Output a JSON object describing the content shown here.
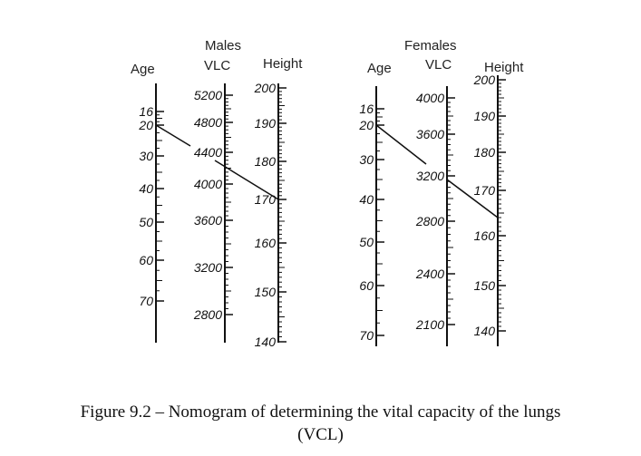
{
  "figure": {
    "caption_line1": "Figure 9.2 –  Nomogram of determining the vital capacity of the lungs",
    "caption_line2": "(VCL)"
  },
  "males": {
    "title": "Males",
    "age_label": "Age",
    "vlc_label": "VLC",
    "height_label": "Height",
    "age_ticks": [
      "16",
      "20",
      "30",
      "40",
      "50",
      "60",
      "70"
    ],
    "vlc_ticks": [
      "5200",
      "4800",
      "4400",
      "4000",
      "3600",
      "3200",
      "2800"
    ],
    "height_ticks": [
      "200",
      "190",
      "180",
      "170",
      "160",
      "150",
      "140"
    ],
    "example": {
      "age": 20,
      "height": 170,
      "vlc": 4250
    }
  },
  "females": {
    "title": "Females",
    "age_label": "Age",
    "vlc_label": "VLC",
    "height_label": "Height",
    "age_ticks": [
      "16",
      "20",
      "30",
      "40",
      "50",
      "60",
      "70"
    ],
    "vlc_ticks": [
      "4000",
      "3600",
      "3200",
      "2800",
      "2400",
      "2100"
    ],
    "height_ticks": [
      "200",
      "190",
      "180",
      "170",
      "160",
      "150",
      "140"
    ],
    "example": {
      "age": 20,
      "height": 164,
      "vlc": 3150
    }
  },
  "colors": {
    "ink": "#111111"
  }
}
